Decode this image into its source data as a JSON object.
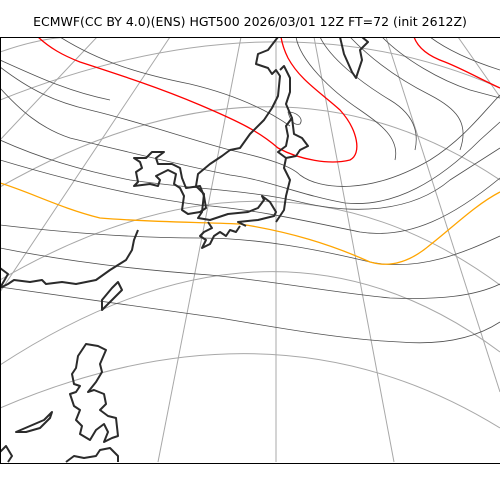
{
  "header": {
    "title": "ECMWF(CC BY 4.0)(ENS) HGT500 2026/03/01 12Z FT=72 (init 2612Z)"
  },
  "map": {
    "product": "HGT500",
    "colors": {
      "graticule": "#a8a8a8",
      "height_contour": "#505050",
      "highlight_high": "#ff0000",
      "highlight_low": "#ffa500",
      "coastline": "#2b2b2b",
      "background": "#ffffff"
    }
  }
}
